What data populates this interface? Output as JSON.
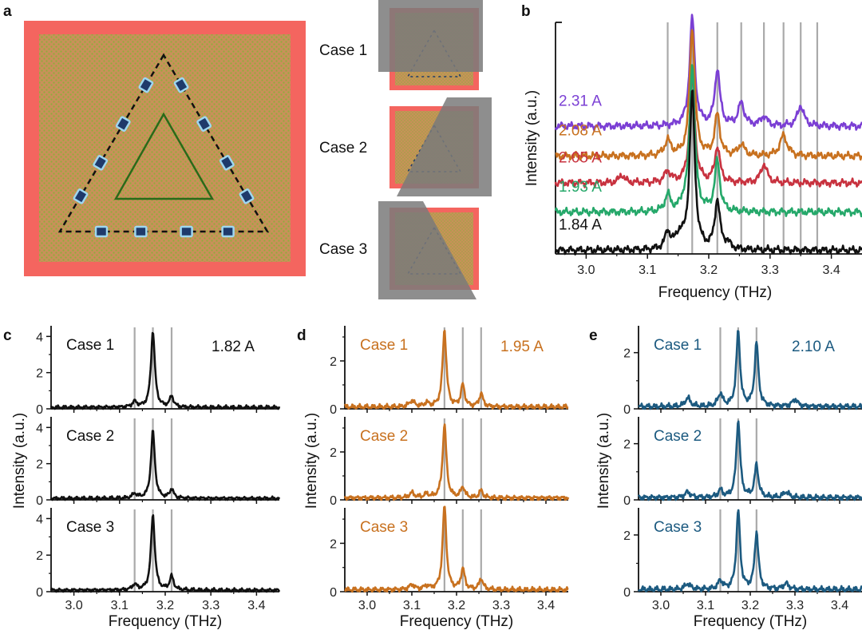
{
  "panel_labels": [
    "a",
    "b",
    "c",
    "d",
    "e"
  ],
  "colors": {
    "black": "#111111",
    "orange": "#c8711f",
    "blue": "#1c5a80",
    "purple": "#7b3fd4",
    "gold": "#c8711f",
    "red": "#c8323f",
    "green": "#25a86a",
    "grid": "#aaaaaa",
    "frame": "#f4655f",
    "lattice": "#c9905a",
    "lattice_dot": "#8fae3b",
    "site_fill": "#1f3a6b",
    "site_edge": "#9ed7f0",
    "inner_triangle": "#2a6a1a",
    "shade": "#7a7a7a"
  },
  "panel_a": {
    "cases": [
      {
        "label": "Case 1"
      },
      {
        "label": "Case 2"
      },
      {
        "label": "Case 3"
      }
    ]
  },
  "chart_data": [
    {
      "id": "b",
      "type": "line",
      "xlabel": "Frequency (THz)",
      "ylabel": "Intensity (a.u.)",
      "xlim": [
        2.95,
        3.45
      ],
      "xticks": [
        3.0,
        3.1,
        3.2,
        3.3,
        3.4
      ],
      "xtick_labels": [
        "3.0",
        "3.1",
        "3.2",
        "3.3",
        "3.4"
      ],
      "ylim": [
        0,
        6.2
      ],
      "yticks_shown": false,
      "vlines": [
        3.133,
        3.173,
        3.214,
        3.253,
        3.29,
        3.322,
        3.35,
        3.377
      ],
      "series": [
        {
          "name": "1.84 A",
          "color": "black",
          "offset": 0.0,
          "baseline": 0.1,
          "peaks": [
            [
              3.133,
              0.45,
              0.005
            ],
            [
              3.152,
              0.35,
              0.008
            ],
            [
              3.173,
              4.2,
              0.005
            ],
            [
              3.214,
              1.3,
              0.005
            ],
            [
              3.23,
              0.15,
              0.006
            ]
          ]
        },
        {
          "name": "1.93 A",
          "color": "green",
          "offset": 1.0,
          "baseline": 0.12,
          "peaks": [
            [
              3.133,
              0.45,
              0.005
            ],
            [
              3.173,
              3.9,
              0.005
            ],
            [
              3.214,
              1.35,
              0.005
            ],
            [
              3.16,
              0.2,
              0.006
            ]
          ]
        },
        {
          "name": "2.05 A",
          "color": "red",
          "offset": 1.8,
          "baseline": 0.1,
          "peaks": [
            [
              3.058,
              0.22,
              0.005
            ],
            [
              3.133,
              0.3,
              0.006
            ],
            [
              3.173,
              2.9,
              0.005
            ],
            [
              3.214,
              0.95,
              0.005
            ],
            [
              3.29,
              0.5,
              0.006
            ]
          ]
        },
        {
          "name": "2.08 A",
          "color": "gold",
          "offset": 2.5,
          "baseline": 0.12,
          "peaks": [
            [
              3.133,
              0.4,
              0.006
            ],
            [
              3.173,
              3.4,
              0.005
            ],
            [
              3.214,
              1.1,
              0.005
            ],
            [
              3.253,
              0.3,
              0.006
            ],
            [
              3.322,
              0.55,
              0.007
            ]
          ]
        },
        {
          "name": "2.31 A",
          "color": "purple",
          "offset": 3.3,
          "baseline": 0.12,
          "peaks": [
            [
              3.173,
              2.9,
              0.005
            ],
            [
              3.214,
              1.5,
              0.005
            ],
            [
              3.253,
              0.6,
              0.006
            ],
            [
              3.29,
              0.25,
              0.006
            ],
            [
              3.35,
              0.55,
              0.006
            ]
          ]
        }
      ]
    },
    {
      "id": "c",
      "type": "line",
      "current": "1.82 A",
      "color": "black",
      "xlabel": "Frequency (THz)",
      "ylabel": "Intensity (a.u.)",
      "xlim": [
        2.95,
        3.45
      ],
      "xticks": [
        3.0,
        3.1,
        3.2,
        3.3,
        3.4
      ],
      "xtick_labels": [
        "3.0",
        "3.1",
        "3.2",
        "3.3",
        "3.4"
      ],
      "ylim": [
        0,
        4.5
      ],
      "yticks": [
        0,
        2,
        4
      ],
      "ytick_labels": [
        "0",
        "2",
        "4"
      ],
      "vlines": [
        3.133,
        3.173,
        3.214
      ],
      "subplots": [
        {
          "label": "Case 1",
          "peaks": [
            [
              3.133,
              0.3,
              0.006
            ],
            [
              3.173,
              4.2,
              0.005
            ],
            [
              3.214,
              0.6,
              0.005
            ]
          ]
        },
        {
          "label": "Case 2",
          "peaks": [
            [
              3.133,
              0.25,
              0.006
            ],
            [
              3.173,
              3.7,
              0.005
            ],
            [
              3.214,
              0.5,
              0.005
            ]
          ]
        },
        {
          "label": "Case 3",
          "peaks": [
            [
              3.133,
              0.3,
              0.006
            ],
            [
              3.173,
              4.1,
              0.005
            ],
            [
              3.214,
              0.75,
              0.005
            ]
          ]
        }
      ]
    },
    {
      "id": "d",
      "type": "line",
      "current": "1.95 A",
      "color": "orange",
      "xlabel": "Frequency (THz)",
      "ylabel": "Intensity (a.u.)",
      "xlim": [
        2.95,
        3.45
      ],
      "xticks": [
        3.0,
        3.1,
        3.2,
        3.3,
        3.4
      ],
      "xtick_labels": [
        "3.0",
        "3.1",
        "3.2",
        "3.3",
        "3.4"
      ],
      "ylim": [
        0,
        3.4
      ],
      "yticks": [
        0,
        2
      ],
      "ytick_labels": [
        "0",
        "2"
      ],
      "vlines": [
        3.173,
        3.214,
        3.255
      ],
      "subplots": [
        {
          "label": "Case 1",
          "peaks": [
            [
              3.133,
              0.15,
              0.006
            ],
            [
              3.173,
              3.2,
              0.005
            ],
            [
              3.214,
              0.9,
              0.005
            ],
            [
              3.255,
              0.55,
              0.005
            ],
            [
              3.1,
              0.25,
              0.007
            ]
          ]
        },
        {
          "label": "Case 2",
          "peaks": [
            [
              3.133,
              0.15,
              0.006
            ],
            [
              3.173,
              3.05,
              0.005
            ],
            [
              3.214,
              0.45,
              0.005
            ],
            [
              3.255,
              0.3,
              0.005
            ],
            [
              3.1,
              0.2,
              0.007
            ]
          ]
        },
        {
          "label": "Case 3",
          "peaks": [
            [
              3.133,
              0.15,
              0.006
            ],
            [
              3.173,
              3.45,
              0.005
            ],
            [
              3.214,
              0.85,
              0.005
            ],
            [
              3.255,
              0.45,
              0.005
            ],
            [
              3.1,
              0.2,
              0.007
            ]
          ]
        }
      ]
    },
    {
      "id": "e",
      "type": "line",
      "current": "2.10 A",
      "color": "blue",
      "xlabel": "Frequency (THz)",
      "ylabel": "Intensity (a.u.)",
      "xlim": [
        2.95,
        3.45
      ],
      "xticks": [
        3.0,
        3.1,
        3.2,
        3.3,
        3.4
      ],
      "xtick_labels": [
        "3.0",
        "3.1",
        "3.2",
        "3.3",
        "3.4"
      ],
      "ylim": [
        0,
        2.9
      ],
      "yticks": [
        0,
        2
      ],
      "ytick_labels": [
        "0",
        "2"
      ],
      "vlines": [
        3.133,
        3.173,
        3.214
      ],
      "subplots": [
        {
          "label": "Case 1",
          "peaks": [
            [
              3.133,
              0.45,
              0.006
            ],
            [
              3.173,
              2.65,
              0.005
            ],
            [
              3.214,
              2.25,
              0.005
            ],
            [
              3.06,
              0.3,
              0.007
            ],
            [
              3.3,
              0.25,
              0.007
            ]
          ]
        },
        {
          "label": "Case 2",
          "peaks": [
            [
              3.133,
              0.25,
              0.006
            ],
            [
              3.173,
              2.75,
              0.005
            ],
            [
              3.214,
              1.15,
              0.005
            ],
            [
              3.06,
              0.2,
              0.007
            ],
            [
              3.28,
              0.2,
              0.007
            ]
          ]
        },
        {
          "label": "Case 3",
          "peaks": [
            [
              3.133,
              0.3,
              0.006
            ],
            [
              3.173,
              2.75,
              0.005
            ],
            [
              3.214,
              2.0,
              0.005
            ],
            [
              3.06,
              0.2,
              0.007
            ],
            [
              3.28,
              0.2,
              0.007
            ]
          ]
        }
      ]
    }
  ]
}
